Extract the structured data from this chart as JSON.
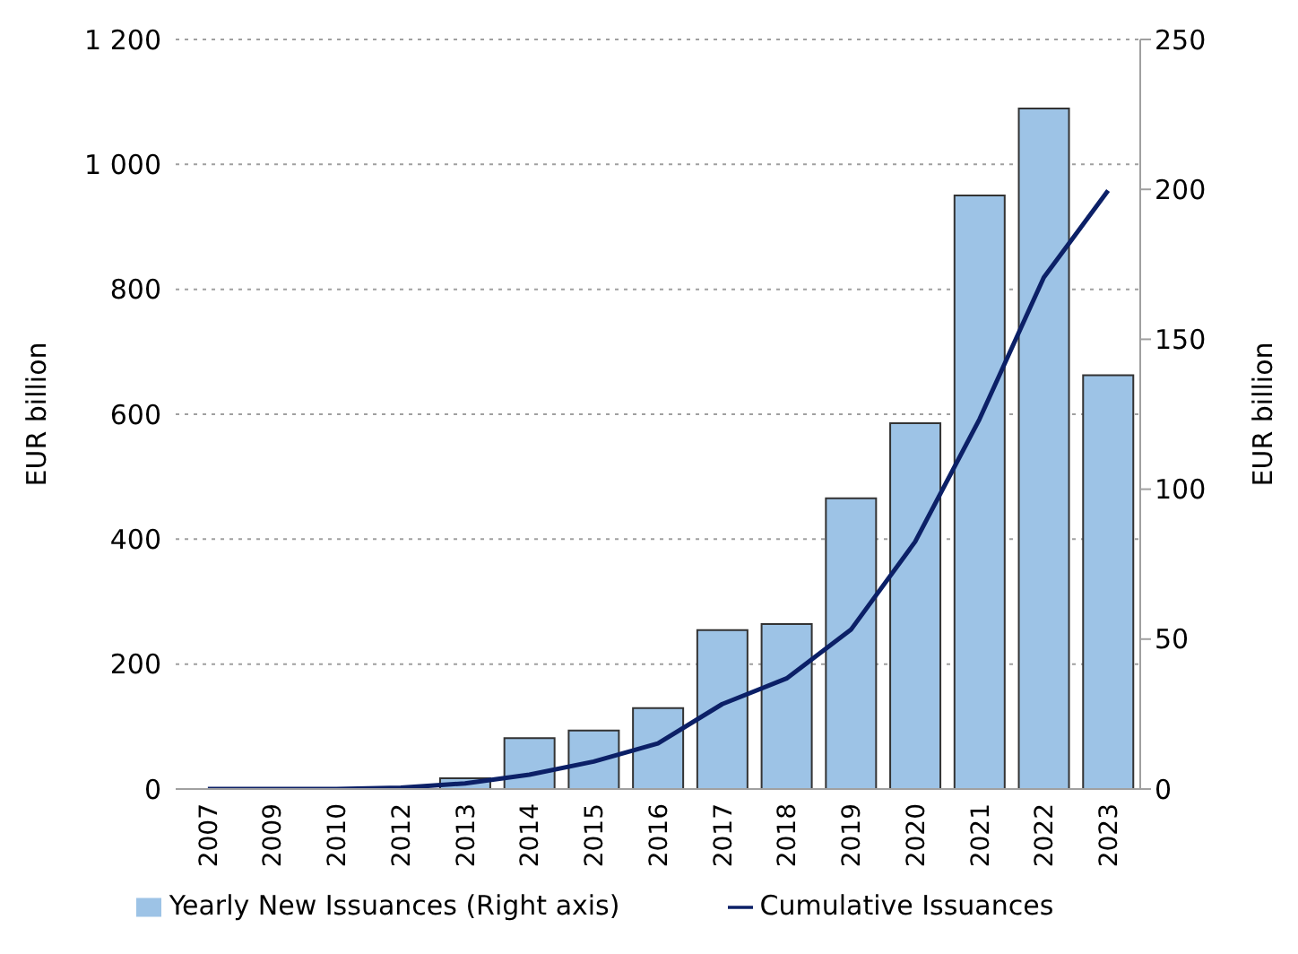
{
  "chart_data": {
    "type": "bar",
    "ylabel": "EUR billion",
    "y2label": "EUR billion",
    "categories": [
      "2007",
      "2009",
      "2010",
      "2012",
      "2013",
      "2014",
      "2015",
      "2016",
      "2017",
      "2018",
      "2019",
      "2020",
      "2021",
      "2022",
      "2023"
    ],
    "series": [
      {
        "name": "Yearly New Issuances (Right axis)",
        "axis": "y2",
        "color": "#9dc3e6",
        "values": [
          0,
          0,
          0,
          0,
          3.6,
          17,
          19.5,
          27,
          53,
          55,
          97,
          122,
          198,
          227,
          138
        ]
      },
      {
        "name": "Cumulative Issuances",
        "type": "line",
        "color": "#0c2067",
        "values": [
          0,
          0,
          0,
          2,
          9,
          23,
          44,
          73,
          136,
          177,
          255,
          396,
          592,
          819,
          958
        ]
      }
    ],
    "ylim": [
      0,
      1200
    ],
    "yticks": [
      0,
      200,
      400,
      600,
      800,
      {
        "value": 1000,
        "label": "1 000"
      },
      {
        "value": 1200,
        "label": "1 200"
      }
    ],
    "y2lim": [
      0,
      250
    ],
    "y2ticks": [
      0,
      50,
      100,
      150,
      200,
      250
    ],
    "grid": "y",
    "legend": "bottom",
    "marker": "none"
  }
}
